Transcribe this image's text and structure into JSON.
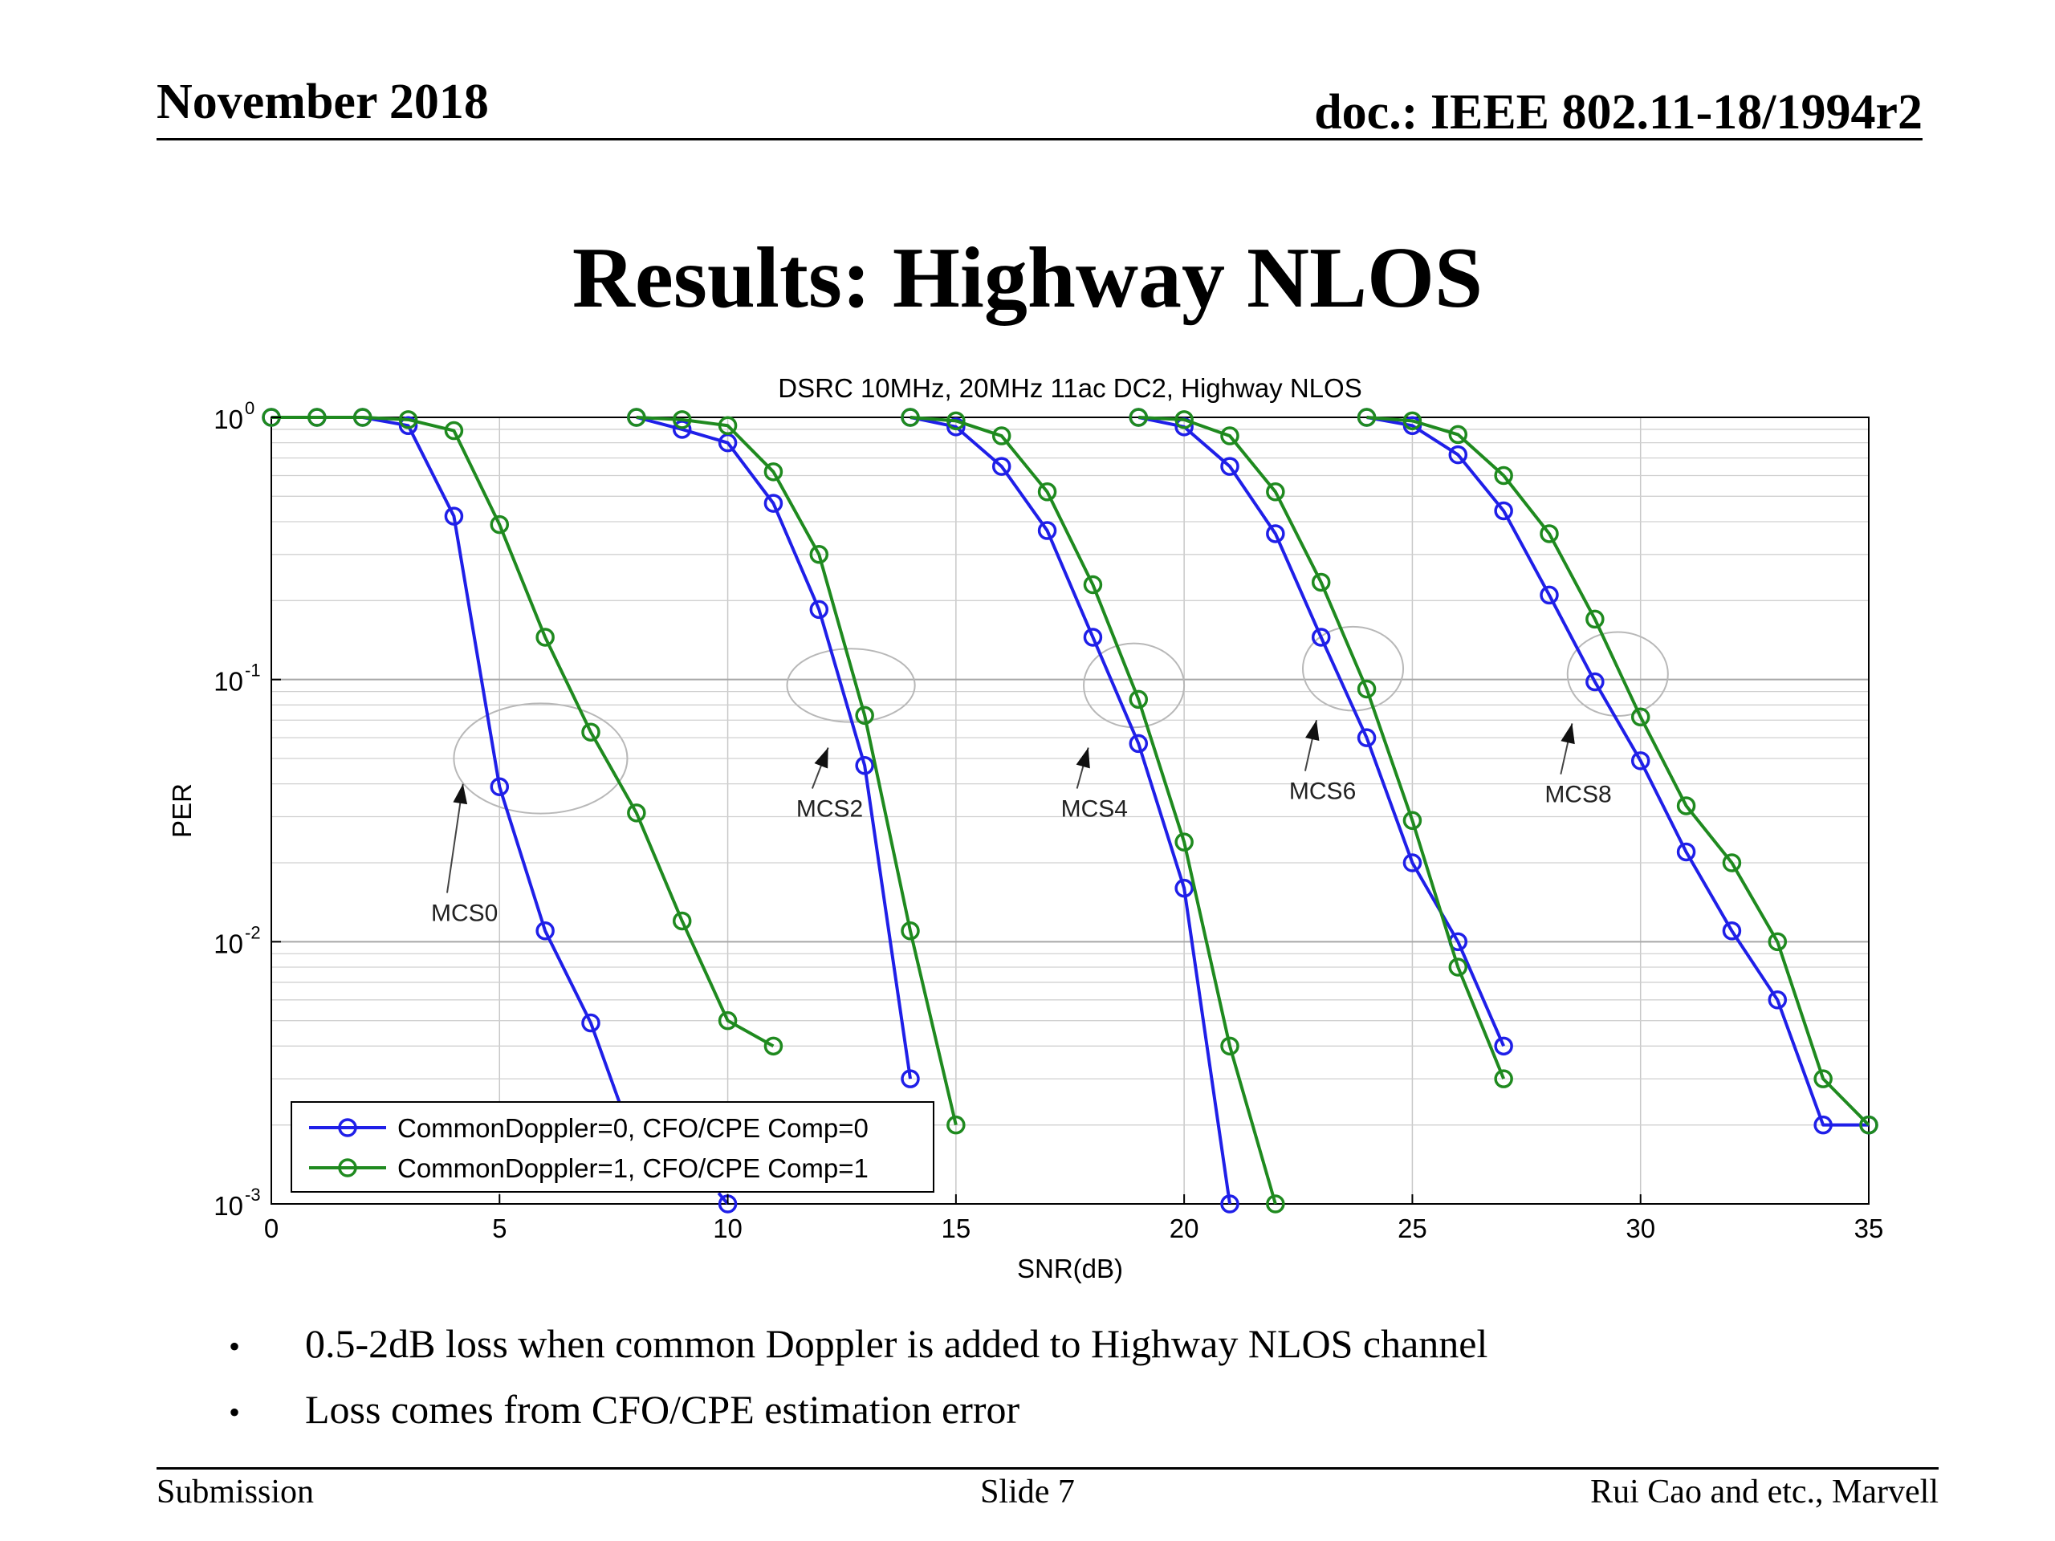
{
  "header": {
    "date": "November 2018",
    "doc": "doc.: IEEE 802.11-18/1994r2"
  },
  "slide_title": "Results: Highway NLOS",
  "bullets": [
    "0.5-2dB loss when common Doppler is added to Highway NLOS channel",
    "Loss comes from CFO/CPE estimation error"
  ],
  "footer": {
    "left": "Submission",
    "center": "Slide 7",
    "right": "Rui Cao and etc., Marvell"
  },
  "colors": {
    "blue": "#1f1fe8",
    "green": "#1f8a1f"
  },
  "chart_data": {
    "type": "line",
    "title": "DSRC 10MHz, 20MHz 11ac DC2, Highway NLOS",
    "xlabel": "SNR(dB)",
    "ylabel": "PER",
    "xlim": [
      0,
      35
    ],
    "ylim": [
      0.001,
      1
    ],
    "yscale": "log",
    "grid": true,
    "legend_position": "bottom-left",
    "xticks": [
      "0",
      "5",
      "10",
      "15",
      "20",
      "25",
      "30",
      "35"
    ],
    "yticks": [
      {
        "base": "10",
        "exp": "0",
        "value": 1
      },
      {
        "base": "10",
        "exp": "-1",
        "value": 0.1
      },
      {
        "base": "10",
        "exp": "-2",
        "value": 0.01
      },
      {
        "base": "10",
        "exp": "-3",
        "value": 0.001
      }
    ],
    "series": [
      {
        "name": "CommonDoppler=0, CFO/CPE Comp=0",
        "color": "#1f1fe8",
        "segments": [
          [
            [
              0,
              1
            ],
            [
              1,
              1
            ],
            [
              2,
              1
            ],
            [
              3,
              0.93
            ],
            [
              4,
              0.42
            ],
            [
              5,
              0.039
            ],
            [
              6,
              0.011
            ],
            [
              7,
              0.0049
            ],
            [
              7.9,
              0.0018
            ]
          ],
          [
            [
              9.8,
              0.0011
            ],
            [
              10,
              0.001
            ]
          ],
          [
            [
              8,
              1
            ],
            [
              9,
              0.9
            ],
            [
              10,
              0.8
            ],
            [
              11,
              0.47
            ],
            [
              12,
              0.185
            ],
            [
              13,
              0.047
            ],
            [
              14,
              0.003
            ]
          ],
          [
            [
              14,
              1
            ],
            [
              15,
              0.92
            ],
            [
              16,
              0.65
            ],
            [
              17,
              0.37
            ],
            [
              18,
              0.145
            ],
            [
              19,
              0.057
            ],
            [
              20,
              0.016
            ],
            [
              21,
              0.001
            ]
          ],
          [
            [
              19,
              1
            ],
            [
              20,
              0.92
            ],
            [
              21,
              0.65
            ],
            [
              22,
              0.36
            ],
            [
              23,
              0.145
            ],
            [
              24,
              0.06
            ],
            [
              25,
              0.02
            ],
            [
              26,
              0.01
            ],
            [
              27,
              0.004
            ]
          ],
          [
            [
              24,
              1
            ],
            [
              25,
              0.93
            ],
            [
              26,
              0.72
            ],
            [
              27,
              0.44
            ],
            [
              28,
              0.21
            ],
            [
              29,
              0.098
            ],
            [
              30,
              0.049
            ],
            [
              31,
              0.022
            ],
            [
              32,
              0.011
            ],
            [
              33,
              0.006
            ],
            [
              34,
              0.002
            ],
            [
              35,
              0.002
            ]
          ]
        ]
      },
      {
        "name": "CommonDoppler=1, CFO/CPE Comp=1",
        "color": "#1f8a1f",
        "segments": [
          [
            [
              0,
              1
            ],
            [
              1,
              1
            ],
            [
              2,
              1
            ],
            [
              3,
              0.98
            ],
            [
              4,
              0.89
            ],
            [
              5,
              0.39
            ],
            [
              6,
              0.145
            ],
            [
              7,
              0.063
            ],
            [
              8,
              0.031
            ],
            [
              9,
              0.012
            ],
            [
              10,
              0.005
            ],
            [
              11,
              0.004
            ]
          ],
          [
            [
              8,
              1
            ],
            [
              9,
              0.98
            ],
            [
              10,
              0.93
            ],
            [
              11,
              0.62
            ],
            [
              12,
              0.3
            ],
            [
              13,
              0.073
            ],
            [
              14,
              0.011
            ],
            [
              15,
              0.002
            ]
          ],
          [
            [
              14,
              1
            ],
            [
              15,
              0.97
            ],
            [
              16,
              0.85
            ],
            [
              17,
              0.52
            ],
            [
              18,
              0.23
            ],
            [
              19,
              0.084
            ],
            [
              20,
              0.024
            ],
            [
              21,
              0.004
            ],
            [
              22,
              0.001
            ]
          ],
          [
            [
              19,
              1
            ],
            [
              20,
              0.98
            ],
            [
              21,
              0.85
            ],
            [
              22,
              0.52
            ],
            [
              23,
              0.235
            ],
            [
              24,
              0.092
            ],
            [
              25,
              0.029
            ],
            [
              26,
              0.008
            ],
            [
              27,
              0.003
            ]
          ],
          [
            [
              24,
              1
            ],
            [
              25,
              0.97
            ],
            [
              26,
              0.86
            ],
            [
              27,
              0.6
            ],
            [
              28,
              0.36
            ],
            [
              29,
              0.17
            ],
            [
              30,
              0.072
            ],
            [
              31,
              0.033
            ],
            [
              32,
              0.02
            ],
            [
              33,
              0.01
            ],
            [
              34,
              0.003
            ],
            [
              35,
              0.002
            ]
          ]
        ]
      }
    ],
    "annotations": [
      {
        "text": "MCS0",
        "label_at": [
          3.5,
          0.012
        ],
        "arrow_to": [
          4.2,
          0.04
        ],
        "ellipse_center": [
          5.9,
          0.05
        ],
        "ellipse_rx_db": 1.9,
        "ellipse_ry_decades": 0.21
      },
      {
        "text": "MCS2",
        "label_at": [
          11.5,
          0.03
        ],
        "arrow_to": [
          12.2,
          0.055
        ],
        "ellipse_center": [
          12.7,
          0.095
        ],
        "ellipse_rx_db": 1.4,
        "ellipse_ry_decades": 0.14
      },
      {
        "text": "MCS4",
        "label_at": [
          17.3,
          0.03
        ],
        "arrow_to": [
          17.9,
          0.055
        ],
        "ellipse_center": [
          18.9,
          0.095
        ],
        "ellipse_rx_db": 1.1,
        "ellipse_ry_decades": 0.16
      },
      {
        "text": "MCS6",
        "label_at": [
          22.3,
          0.035
        ],
        "arrow_to": [
          22.9,
          0.07
        ],
        "ellipse_center": [
          23.7,
          0.11
        ],
        "ellipse_rx_db": 1.1,
        "ellipse_ry_decades": 0.16
      },
      {
        "text": "MCS8",
        "label_at": [
          27.9,
          0.034
        ],
        "arrow_to": [
          28.5,
          0.068
        ],
        "ellipse_center": [
          29.5,
          0.105
        ],
        "ellipse_rx_db": 1.1,
        "ellipse_ry_decades": 0.16
      }
    ]
  }
}
